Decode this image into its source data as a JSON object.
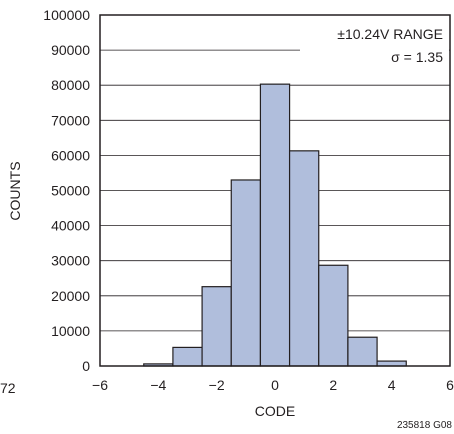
{
  "chart_data": {
    "type": "bar",
    "xlabel": "CODE",
    "ylabel": "COUNTS",
    "xlim": [
      -6,
      6
    ],
    "ylim": [
      0,
      100000
    ],
    "x_ticks": [
      "−6",
      "−4",
      "−2",
      "0",
      "2",
      "4",
      "6"
    ],
    "y_ticks": [
      "0",
      "10000",
      "20000",
      "30000",
      "40000",
      "50000",
      "60000",
      "70000",
      "80000",
      "90000",
      "100000"
    ],
    "bin_width": 1,
    "bins": [
      -4,
      -3,
      -2,
      -1,
      0,
      1,
      2,
      3,
      4
    ],
    "values": [
      600,
      5300,
      22600,
      53000,
      80300,
      61300,
      28700,
      8200,
      1400
    ],
    "grid": true,
    "bar_color": "#b0bedc",
    "annotations": [
      "±10.24V RANGE",
      "σ = 1.35"
    ]
  },
  "figure_id": "235818 G08",
  "left_edge_fragment": "72"
}
